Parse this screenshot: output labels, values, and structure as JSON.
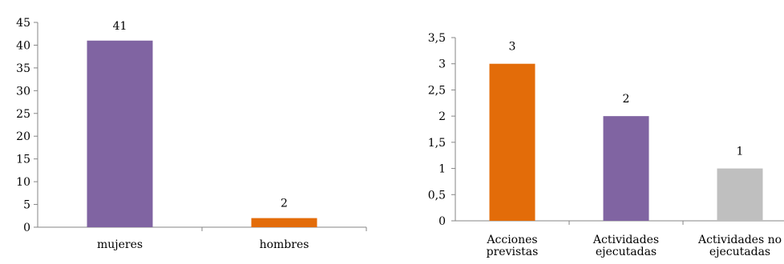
{
  "chart_data": [
    {
      "type": "bar",
      "categories": [
        "mujeres",
        "hombres"
      ],
      "values": [
        41,
        2
      ],
      "data_labels": [
        "41",
        "2"
      ],
      "colors": [
        "#8064A2",
        "#E36C09"
      ],
      "ylim": [
        0,
        45
      ],
      "yticks": [
        0,
        5,
        10,
        15,
        20,
        25,
        30,
        35,
        40,
        45
      ],
      "ytick_labels": [
        "0",
        "5",
        "10",
        "15",
        "20",
        "25",
        "30",
        "35",
        "40",
        "45"
      ],
      "grid": false,
      "legend": "none"
    },
    {
      "type": "bar",
      "categories": [
        [
          "Acciones",
          "previstas"
        ],
        [
          "Actividades",
          "ejecutadas"
        ],
        [
          "Actividades no",
          "ejecutadas"
        ]
      ],
      "values": [
        3,
        2,
        1
      ],
      "data_labels": [
        "3",
        "2",
        "1"
      ],
      "colors": [
        "#E36C09",
        "#8064A2",
        "#BFBFBF"
      ],
      "ylim": [
        0,
        3.5
      ],
      "yticks": [
        0,
        0.5,
        1,
        1.5,
        2,
        2.5,
        3,
        3.5
      ],
      "ytick_labels": [
        "0",
        "0,5",
        "1",
        "1,5",
        "2",
        "2,5",
        "3",
        "3,5"
      ],
      "grid": false,
      "legend": "none"
    }
  ]
}
